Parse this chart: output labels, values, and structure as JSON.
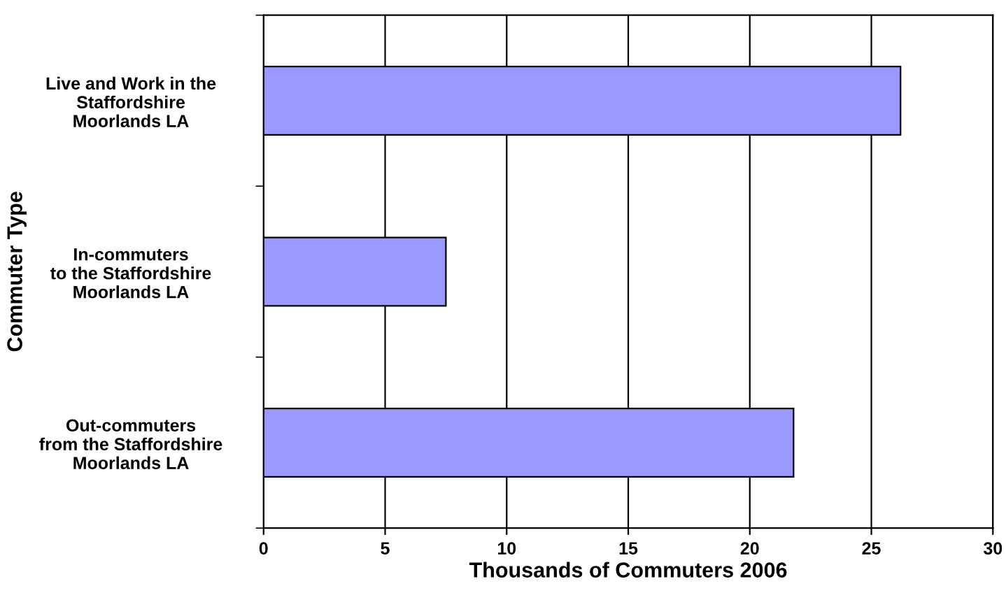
{
  "chart_data": {
    "type": "bar",
    "orientation": "horizontal",
    "categories": [
      "Live and Work in the\nStaffordshire\nMoorlands LA",
      "In-commuters\nto the Staffordshire\nMoorlands LA",
      "Out-commuters\nfrom the Staffordshire\nMoorlands LA"
    ],
    "values": [
      26.2,
      7.5,
      21.8
    ],
    "color": "#9999ff",
    "xlabel": "Thousands of Commuters 2006",
    "ylabel": "Commuter Type",
    "xlim": [
      0,
      30
    ],
    "xticks": [
      0,
      5,
      10,
      15,
      20,
      25,
      30
    ],
    "grid": "x"
  }
}
